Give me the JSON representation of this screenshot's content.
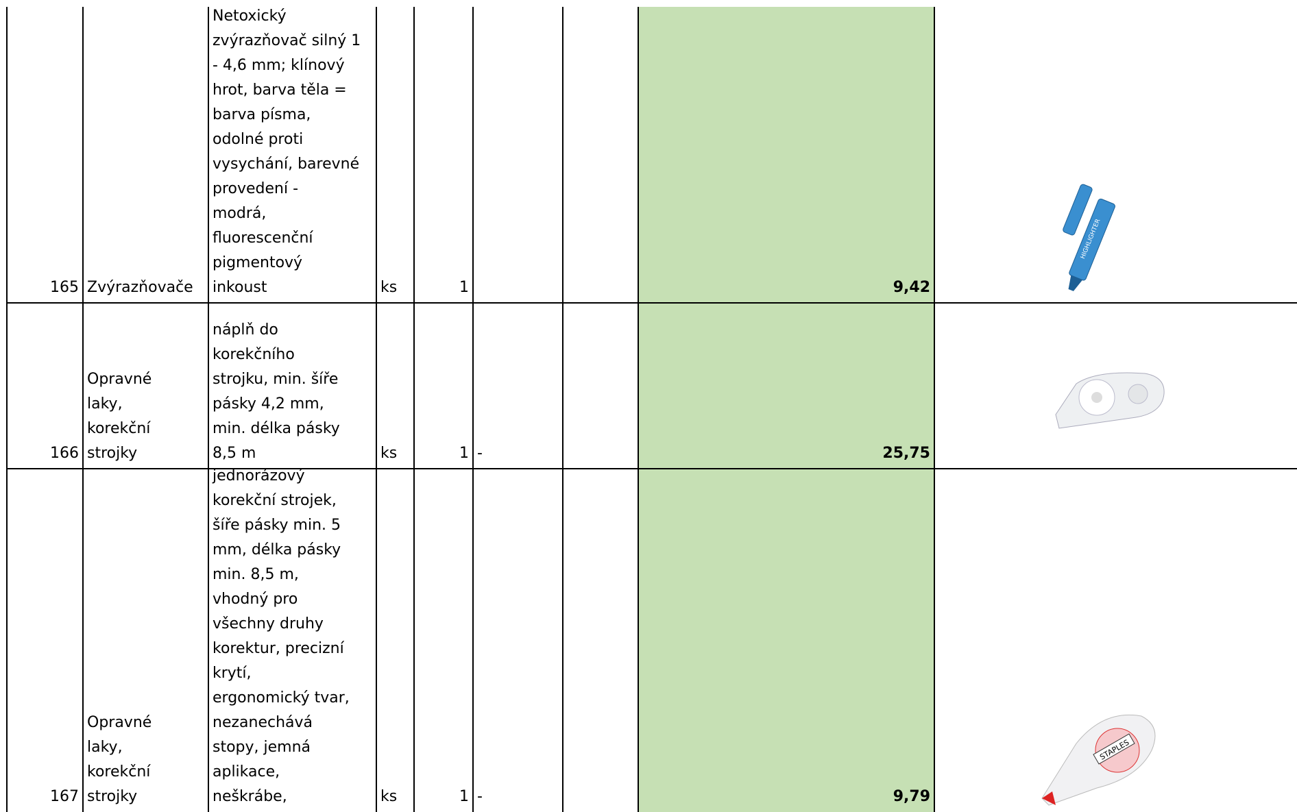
{
  "table": {
    "rows": [
      {
        "number": 165,
        "category": [
          "Zvýrazňovače"
        ],
        "description": [
          "Netoxický",
          "zvýrazňovač silný 1",
          "- 4,6 mm; klínový",
          "hrot, barva těla =",
          "barva písma,",
          "odolné proti",
          "vysychání, barevné",
          "provedení -",
          "modrá,",
          "fluorescenční",
          "pigmentový",
          "inkoust"
        ],
        "unit": "ks",
        "quantity": 1,
        "price": "9,42"
      },
      {
        "number": 166,
        "category": [
          "Opravné",
          "laky,",
          "korekční",
          "strojky"
        ],
        "description": [
          "náplň do",
          "korekčního",
          "strojku, min. šíře",
          "pásky 4,2 mm,",
          "min. délka pásky",
          "8,5 m"
        ],
        "unit": "ks",
        "quantity": 1,
        "note": "-",
        "price": "25,75"
      },
      {
        "number": 167,
        "category": [
          "Opravné",
          "laky,",
          "korekční",
          "strojky"
        ],
        "description": [
          "jednorázový",
          "korekční strojek,",
          "šíře pásky min. 5",
          "mm, délka pásky",
          "min. 8,5 m,",
          "vhodný pro",
          "všechny druhy",
          "korektur, precizní",
          "krytí,",
          "ergonomický tvar,",
          "nezanechává",
          "stopy, jemná",
          "aplikace,",
          "neškrábe,"
        ],
        "unit": "ks",
        "quantity": 1,
        "note": "-",
        "price": "9,79"
      }
    ]
  }
}
